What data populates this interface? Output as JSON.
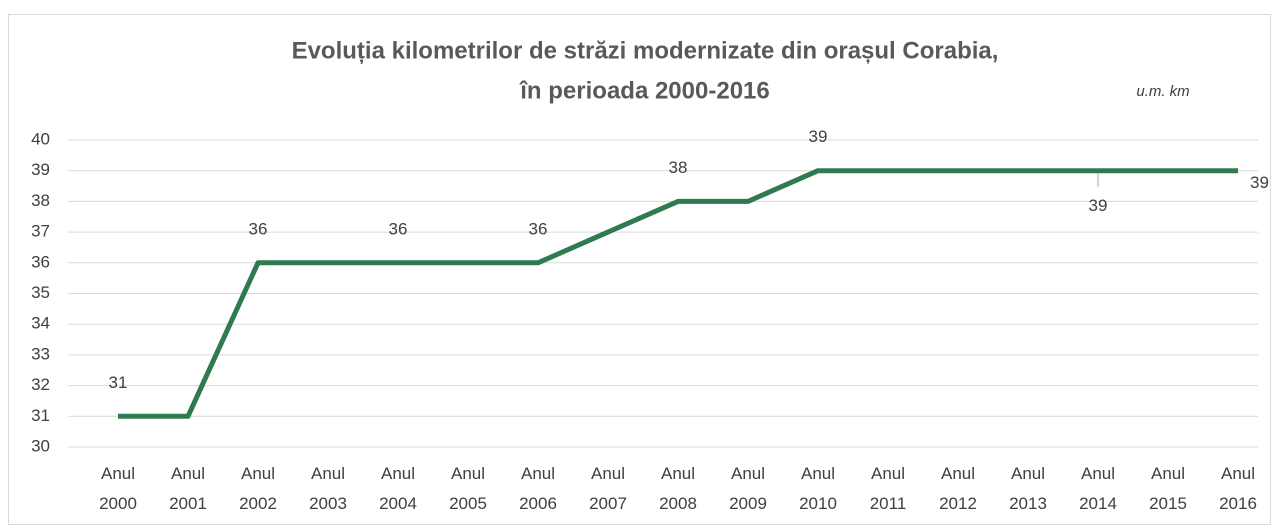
{
  "chart_data": {
    "type": "line",
    "title": [
      "Evoluția kilometrilor de străzi modernizate din orașul Corabia,",
      "în perioada 2000-2016"
    ],
    "unit": "u.m. km",
    "categories": [
      "Anul 2000",
      "Anul 2001",
      "Anul 2002",
      "Anul 2003",
      "Anul 2004",
      "Anul 2005",
      "Anul 2006",
      "Anul 2007",
      "Anul 2008",
      "Anul 2009",
      "Anul 2010",
      "Anul 2011",
      "Anul 2012",
      "Anul 2013",
      "Anul 2014",
      "Anul 2015",
      "Anul 2016"
    ],
    "series": [
      {
        "name": "km",
        "color": "#2e7b4f",
        "values": [
          31,
          31,
          36,
          36,
          36,
          36,
          36,
          37,
          38,
          38,
          39,
          39,
          39,
          39,
          39,
          39,
          39
        ],
        "value_labels": [
          "31",
          null,
          "36",
          null,
          "36",
          null,
          "36",
          null,
          "38",
          null,
          "39",
          null,
          null,
          null,
          "39",
          null,
          "39"
        ]
      }
    ],
    "ylim": [
      30,
      40
    ],
    "yticks": [
      30,
      31,
      32,
      33,
      34,
      35,
      36,
      37,
      38,
      39,
      40
    ],
    "grid": true
  }
}
